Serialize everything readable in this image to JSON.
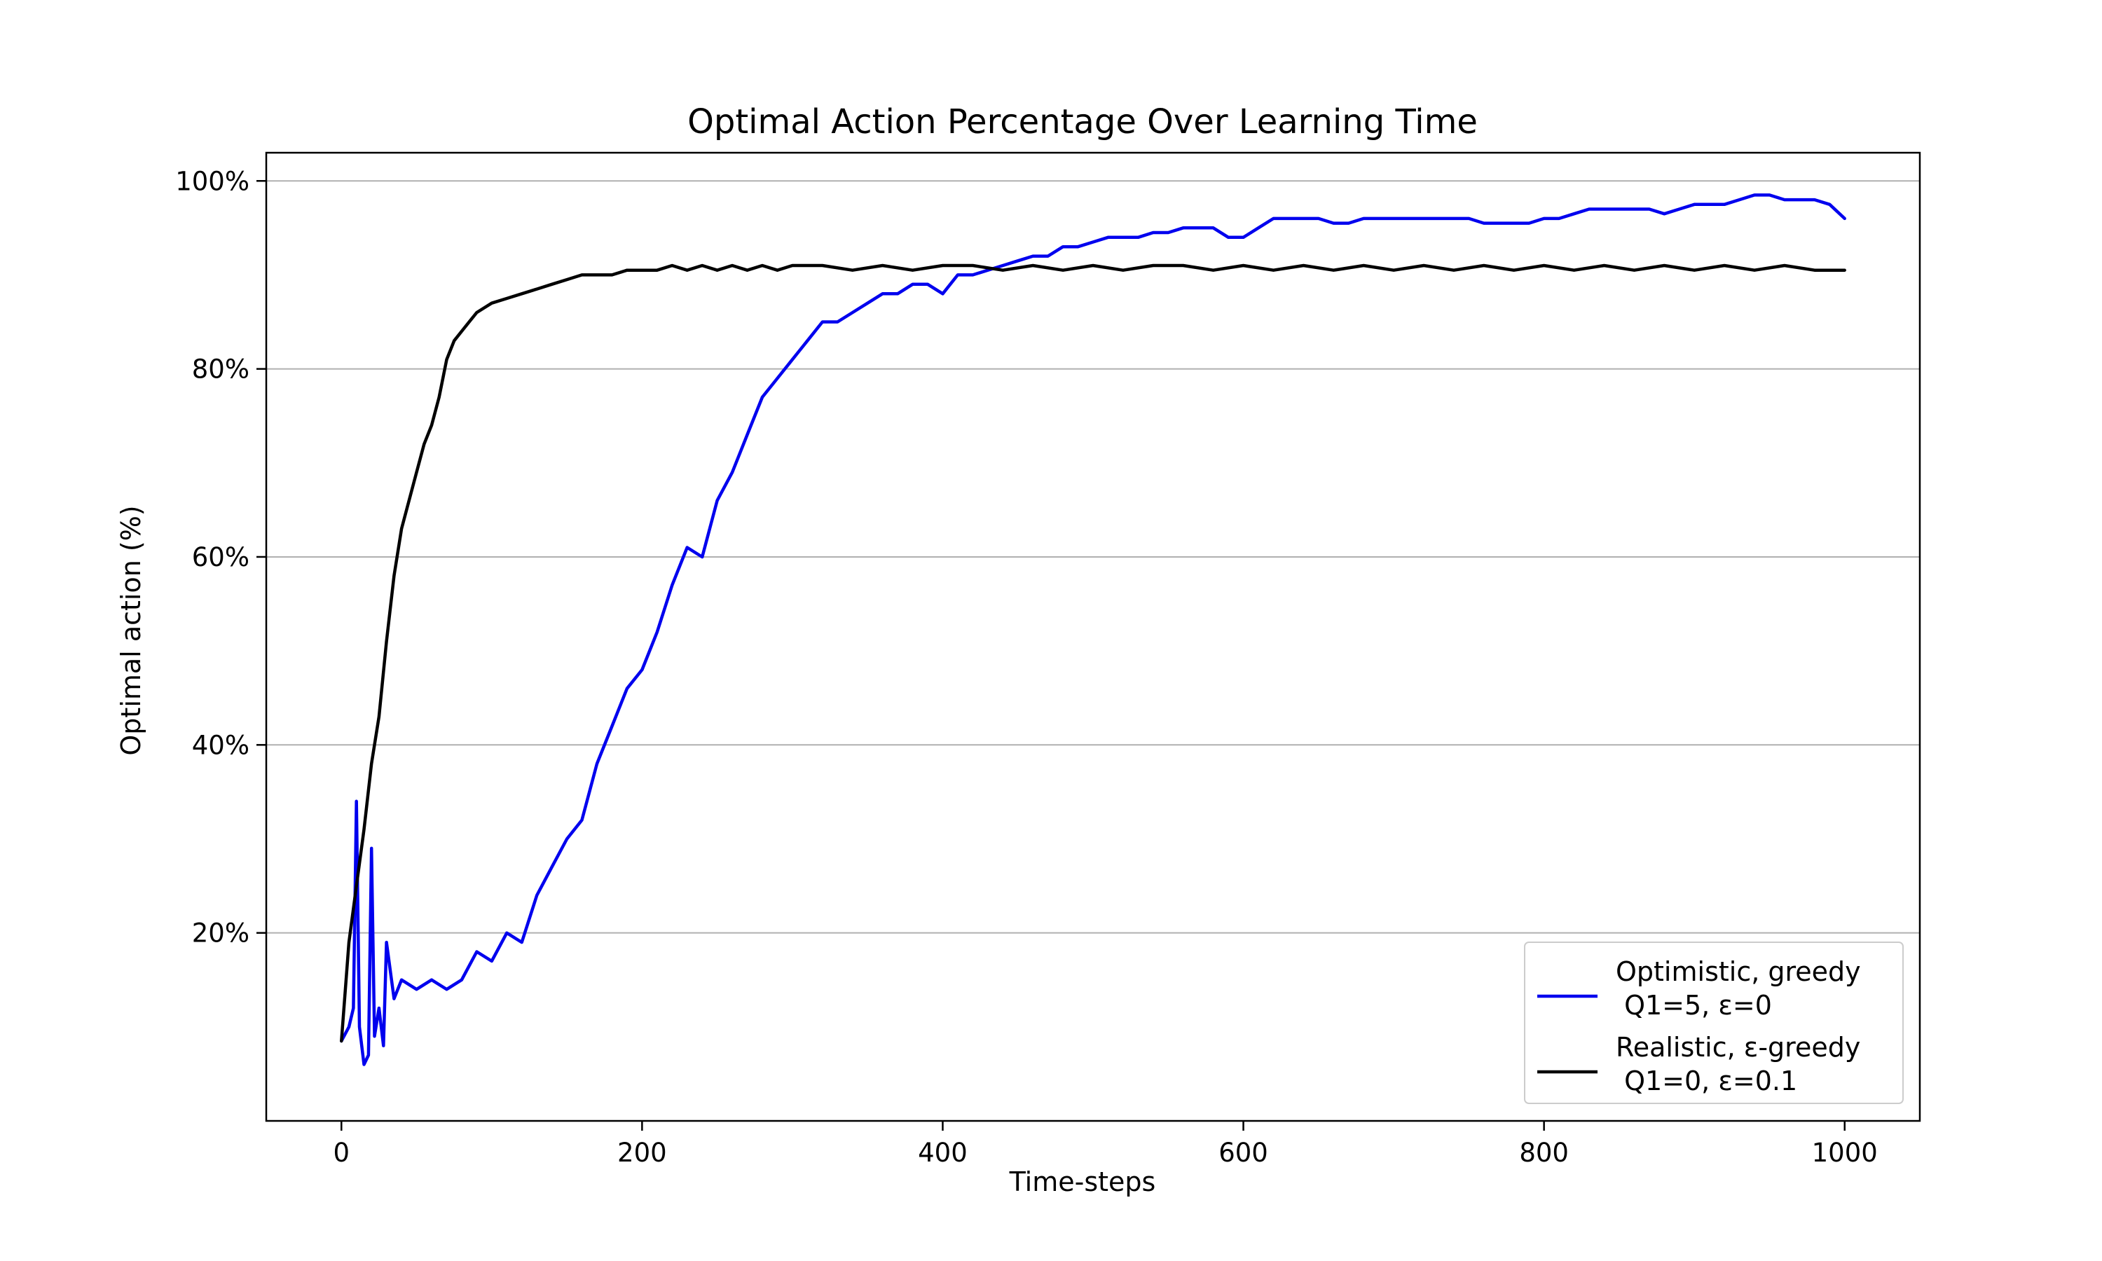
{
  "chart_data": {
    "type": "line",
    "title": "Optimal Action Percentage Over Learning Time",
    "xlabel": "Time-steps",
    "ylabel": "Optimal action (%)",
    "xlim": [
      -50,
      1050
    ],
    "ylim": [
      0,
      103
    ],
    "x_ticks": [
      0,
      200,
      400,
      600,
      800,
      1000
    ],
    "x_tick_labels": [
      "0",
      "200",
      "400",
      "600",
      "800",
      "1000"
    ],
    "y_ticks": [
      20,
      40,
      60,
      80,
      100
    ],
    "y_tick_labels": [
      "20%",
      "40%",
      "60%",
      "80%",
      "100%"
    ],
    "grid": "horizontal",
    "legend_position": "lower-right",
    "series": [
      {
        "name": "Optimistic, greedy\n Q1=5, ε=0",
        "legend_lines": [
          "Optimistic, greedy",
          " Q1=5, ε=0"
        ],
        "color": "#0000ee",
        "x": [
          0,
          5,
          8,
          10,
          12,
          15,
          18,
          20,
          22,
          25,
          28,
          30,
          35,
          40,
          50,
          60,
          70,
          80,
          90,
          100,
          110,
          120,
          130,
          140,
          150,
          160,
          170,
          180,
          190,
          200,
          210,
          220,
          230,
          240,
          250,
          260,
          270,
          280,
          290,
          300,
          310,
          320,
          330,
          340,
          350,
          360,
          370,
          380,
          390,
          400,
          410,
          420,
          430,
          440,
          450,
          460,
          470,
          480,
          490,
          500,
          510,
          520,
          530,
          540,
          550,
          560,
          570,
          580,
          590,
          600,
          610,
          620,
          630,
          640,
          650,
          660,
          670,
          680,
          690,
          700,
          710,
          720,
          730,
          740,
          750,
          760,
          770,
          780,
          790,
          800,
          810,
          820,
          830,
          840,
          850,
          860,
          870,
          880,
          890,
          900,
          910,
          920,
          930,
          940,
          950,
          960,
          970,
          980,
          990,
          1000
        ],
        "values": [
          8.5,
          10,
          12,
          34,
          10,
          6,
          7,
          29,
          9,
          12,
          8,
          19,
          13,
          15,
          14,
          15,
          14,
          15,
          18,
          17,
          20,
          19,
          24,
          27,
          30,
          32,
          38,
          42,
          46,
          48,
          52,
          57,
          61,
          60,
          66,
          69,
          73,
          77,
          79,
          81,
          83,
          85,
          85,
          86,
          87,
          88,
          88,
          89,
          89,
          88,
          90,
          90,
          90.5,
          91,
          91.5,
          92,
          92,
          93,
          93,
          93.5,
          94,
          94,
          94,
          94.5,
          94.5,
          95,
          95,
          95,
          94,
          94,
          95,
          96,
          96,
          96,
          96,
          95.5,
          95.5,
          96,
          96,
          96,
          96,
          96,
          96,
          96,
          96,
          95.5,
          95.5,
          95.5,
          95.5,
          96,
          96,
          96.5,
          97,
          97,
          97,
          97,
          97,
          96.5,
          97,
          97.5,
          97.5,
          97.5,
          98,
          98.5,
          98.5,
          98,
          98,
          98,
          97.5,
          96
        ]
      },
      {
        "name": "Realistic, ε-greedy\n Q1=0, ε=0.1",
        "legend_lines": [
          "Realistic, ε-greedy",
          " Q1=0, ε=0.1"
        ],
        "color": "#000000",
        "x": [
          0,
          5,
          10,
          15,
          20,
          25,
          30,
          35,
          40,
          45,
          50,
          55,
          60,
          65,
          70,
          75,
          80,
          85,
          90,
          95,
          100,
          110,
          120,
          130,
          140,
          150,
          160,
          170,
          180,
          190,
          200,
          210,
          220,
          230,
          240,
          250,
          260,
          270,
          280,
          290,
          300,
          320,
          340,
          360,
          380,
          400,
          420,
          440,
          460,
          480,
          500,
          520,
          540,
          560,
          580,
          600,
          620,
          640,
          660,
          680,
          700,
          720,
          740,
          760,
          780,
          800,
          820,
          840,
          860,
          880,
          900,
          920,
          940,
          960,
          980,
          1000
        ],
        "values": [
          8.5,
          19,
          25,
          31,
          38,
          43,
          51,
          58,
          63,
          66,
          69,
          72,
          74,
          77,
          81,
          83,
          84,
          85,
          86,
          86.5,
          87,
          87.5,
          88,
          88.5,
          89,
          89.5,
          90,
          90,
          90,
          90.5,
          90.5,
          90.5,
          91,
          90.5,
          91,
          90.5,
          91,
          90.5,
          91,
          90.5,
          91,
          91,
          90.5,
          91,
          90.5,
          91,
          91,
          90.5,
          91,
          90.5,
          91,
          90.5,
          91,
          91,
          90.5,
          91,
          90.5,
          91,
          90.5,
          91,
          90.5,
          91,
          90.5,
          91,
          90.5,
          91,
          90.5,
          91,
          90.5,
          91,
          90.5,
          91,
          90.5,
          91,
          90.5,
          90.5
        ]
      }
    ]
  }
}
